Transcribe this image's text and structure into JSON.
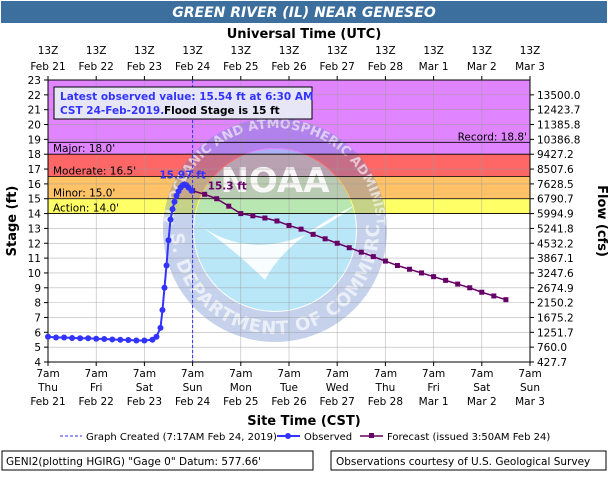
{
  "chart_data": {
    "type": "line",
    "title": "GREEN RIVER (IL) NEAR GENESEO",
    "top_axis_label": "Universal Time (UTC)",
    "bottom_axis_label": "Site Time (CST)",
    "ylabel_left": "Stage (ft)",
    "ylabel_right": "Flow (cfs)",
    "ylim": [
      4,
      23
    ],
    "y_ticks": [
      4,
      5,
      6,
      7,
      8,
      9,
      10,
      11,
      12,
      13,
      14,
      15,
      16,
      17,
      18,
      19,
      20,
      21,
      22,
      23
    ],
    "right_ticks": [
      {
        "stage": 4,
        "label": "427.7"
      },
      {
        "stage": 5,
        "label": "760.0"
      },
      {
        "stage": 6,
        "label": "1251.7"
      },
      {
        "stage": 7,
        "label": "1675.2"
      },
      {
        "stage": 8,
        "label": "2150.2"
      },
      {
        "stage": 9,
        "label": "2674.9"
      },
      {
        "stage": 10,
        "label": "3247.6"
      },
      {
        "stage": 11,
        "label": "3867.1"
      },
      {
        "stage": 12,
        "label": "4532.2"
      },
      {
        "stage": 13,
        "label": "5241.8"
      },
      {
        "stage": 14,
        "label": "5994.9"
      },
      {
        "stage": 15,
        "label": "6790.7"
      },
      {
        "stage": 16,
        "label": "7628.5"
      },
      {
        "stage": 17,
        "label": "8507.6"
      },
      {
        "stage": 18,
        "label": "9427.2"
      },
      {
        "stage": 19,
        "label": "10386.8"
      },
      {
        "stage": 20,
        "label": "11385.8"
      },
      {
        "stage": 21,
        "label": "12423.7"
      },
      {
        "stage": 22,
        "label": "13500.0"
      }
    ],
    "x_range_hours": [
      0,
      240
    ],
    "top_ticks": [
      {
        "time": "13Z",
        "date": "Feb 21"
      },
      {
        "time": "13Z",
        "date": "Feb 22"
      },
      {
        "time": "13Z",
        "date": "Feb 23"
      },
      {
        "time": "13Z",
        "date": "Feb 24"
      },
      {
        "time": "13Z",
        "date": "Feb 25"
      },
      {
        "time": "13Z",
        "date": "Feb 26"
      },
      {
        "time": "13Z",
        "date": "Feb 27"
      },
      {
        "time": "13Z",
        "date": "Feb 28"
      },
      {
        "time": "13Z",
        "date": "Mar 1"
      },
      {
        "time": "13Z",
        "date": "Mar 2"
      },
      {
        "time": "13Z",
        "date": "Mar 3"
      }
    ],
    "bottom_ticks": [
      {
        "time": "7am",
        "day": "Thu",
        "date": "Feb 21"
      },
      {
        "time": "7am",
        "day": "Fri",
        "date": "Feb 22"
      },
      {
        "time": "7am",
        "day": "Sat",
        "date": "Feb 23"
      },
      {
        "time": "7am",
        "day": "Sun",
        "date": "Feb 24"
      },
      {
        "time": "7am",
        "day": "Mon",
        "date": "Feb 25"
      },
      {
        "time": "7am",
        "day": "Tue",
        "date": "Feb 26"
      },
      {
        "time": "7am",
        "day": "Wed",
        "date": "Feb 27"
      },
      {
        "time": "7am",
        "day": "Thu",
        "date": "Feb 28"
      },
      {
        "time": "7am",
        "day": "Fri",
        "date": "Mar 1"
      },
      {
        "time": "7am",
        "day": "Sat",
        "date": "Mar 2"
      },
      {
        "time": "7am",
        "day": "Sun",
        "date": "Mar 3"
      }
    ],
    "flood_zones": [
      {
        "name": "Action",
        "from": 14.0,
        "to": 15.0,
        "color": "#ffff00",
        "label": "Action: 14.0'"
      },
      {
        "name": "Minor",
        "from": 15.0,
        "to": 16.5,
        "color": "#ff9900",
        "label": "Minor: 15.0'"
      },
      {
        "name": "Moderate",
        "from": 16.5,
        "to": 18.0,
        "color": "#ff0000",
        "label": "Moderate: 16.5'"
      },
      {
        "name": "Major",
        "from": 18.0,
        "to": 23.0,
        "color": "#cc33ff",
        "label": "Major: 18.0'"
      }
    ],
    "record": {
      "stage": 18.8,
      "label": "Record: 18.8'"
    },
    "info_box": {
      "line1": "Latest observed value: 15.54 ft at 6:30 AM",
      "line2": "CST 24-Feb-2019.",
      "line2b": "Flood Stage is 15 ft"
    },
    "peak_label": {
      "text": "15.97 ft",
      "x": 68,
      "y": 15.97
    },
    "forecast_peak_label": {
      "text": "15.3 ft",
      "x": 78,
      "y": 15.3
    },
    "graph_created_x": 72,
    "observed": {
      "name": "Observed",
      "color": "#3333ff",
      "x": [
        0,
        4,
        8,
        12,
        16,
        20,
        24,
        28,
        32,
        36,
        40,
        44,
        48,
        52,
        54,
        56,
        57,
        58,
        59,
        60,
        61,
        62,
        63,
        64,
        65,
        66,
        67,
        68,
        69,
        70,
        71.5
      ],
      "y": [
        5.7,
        5.65,
        5.65,
        5.62,
        5.6,
        5.6,
        5.57,
        5.55,
        5.52,
        5.5,
        5.48,
        5.45,
        5.45,
        5.5,
        5.7,
        6.3,
        7.5,
        9.0,
        10.5,
        12.2,
        13.6,
        14.3,
        14.8,
        15.2,
        15.5,
        15.75,
        15.9,
        15.97,
        15.9,
        15.75,
        15.54
      ]
    },
    "forecast": {
      "name": "Forecast (issued 3:50AM Feb 24)",
      "color": "#660066",
      "x": [
        72,
        78,
        84,
        90,
        96,
        102,
        108,
        114,
        120,
        126,
        132,
        138,
        144,
        150,
        156,
        162,
        168,
        174,
        180,
        186,
        192,
        198,
        204,
        210,
        216,
        222,
        228
      ],
      "y": [
        15.54,
        15.3,
        15.0,
        14.5,
        14.0,
        13.85,
        13.7,
        13.5,
        13.2,
        12.95,
        12.6,
        12.3,
        12.0,
        11.7,
        11.4,
        11.1,
        10.8,
        10.5,
        10.25,
        10.0,
        9.75,
        9.5,
        9.25,
        9.0,
        8.7,
        8.45,
        8.2
      ]
    },
    "legend": {
      "graph_created": "Graph Created (7:17AM Feb 24, 2019)",
      "observed": "Observed",
      "forecast": "Forecast (issued 3:50AM Feb 24)"
    },
    "footer": {
      "left": "GENI2(plotting HGIRG) \"Gage 0\" Datum: 577.66'",
      "right": "Observations courtesy of U.S. Geological Survey"
    },
    "watermark_text": "U.S. DEPARTMENT OF COMMERCE",
    "watermark_top_text": "NATIONAL OCEANIC AND ATMOSPHERIC ADMINISTRATION",
    "logo_text": "NOAA"
  }
}
